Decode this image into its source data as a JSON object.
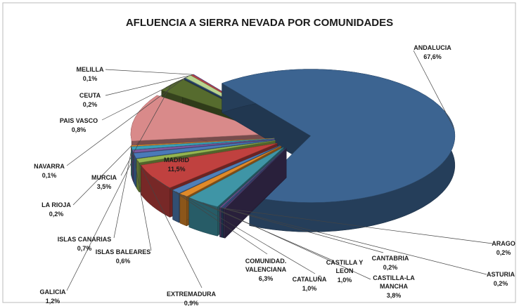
{
  "chart_data": {
    "type": "pie",
    "title": "AFLUENCIA  A SIERRA NEVADA POR COMUNIDADES",
    "categories": [
      "ANDALUCIA",
      "ARAGO",
      "ASTURIA",
      "CANTABRIA",
      "CASTILLA-LA MANCHA",
      "CASTILLA Y LEON",
      "CATALUÑA",
      "COMUNIDAD. VALENCIANA",
      "EXTREMADURA",
      "GALICIA",
      "ISLAS BALEARES",
      "ISLAS CANARIAS",
      "LA RIOJA",
      "MADRID",
      "MURCIA",
      "NAVARRA",
      "PAIS VASCO",
      "CEUTA",
      "MELILLA"
    ],
    "values": [
      67.6,
      0.2,
      0.2,
      0.2,
      3.8,
      1.0,
      1.0,
      6.3,
      0.9,
      1.2,
      0.6,
      0.7,
      0.2,
      11.5,
      3.5,
      0.1,
      0.8,
      0.2,
      0.1
    ],
    "value_labels": [
      "67,6%",
      "0,2%",
      "0,2%",
      "0,2%",
      "3,8%",
      "1,0%",
      "1,0%",
      "6,3%",
      "0,9%",
      "1,2%",
      "0,6%",
      "0,7%",
      "0,2%",
      "11,5%",
      "3,5%",
      "0,1%",
      "0,8%",
      "0,2%",
      "0,1%"
    ],
    "colors": [
      "#3c6491",
      "#4a3b6b",
      "#2d4f78",
      "#6b4f8a",
      "#3f95a6",
      "#e08a2a",
      "#4f7fb8",
      "#c0413f",
      "#94b550",
      "#4a7ab8",
      "#7a5aa0",
      "#3aa0b8",
      "#e8922e",
      "#d98a8a",
      "#566b2e",
      "#3a5f8c",
      "#b9d48e",
      "#c24a48",
      "#7a5aa0"
    ]
  }
}
